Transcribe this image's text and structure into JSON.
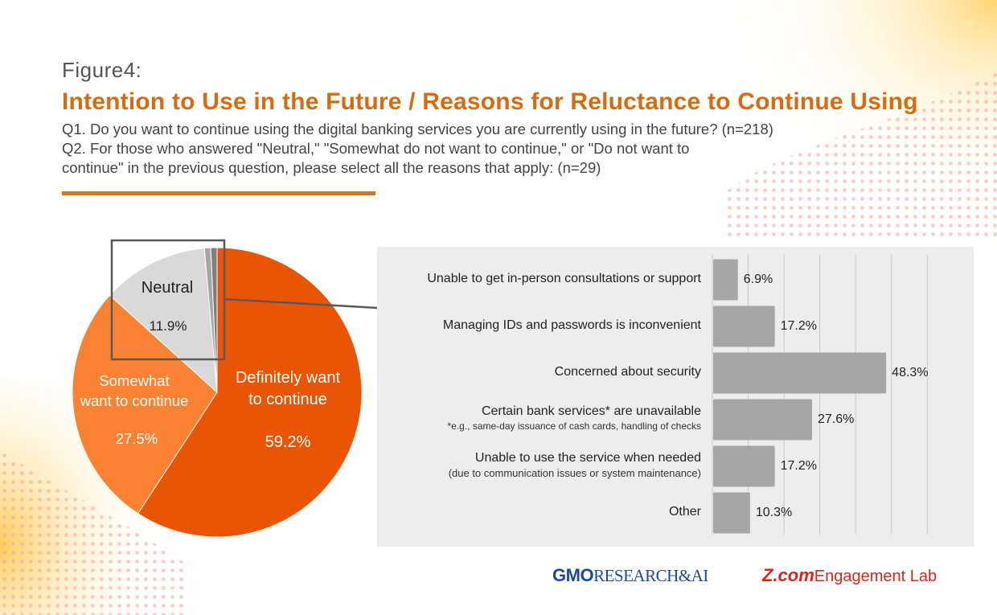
{
  "figure_label": "Figure4:",
  "title": "Intention to Use in the Future / Reasons for Reluctance to Continue Using",
  "questions": {
    "q1": "Q1. Do you want to continue using the digital banking services you are currently using in the future? (n=218)",
    "q2_line1": "Q2. For those who answered \"Neutral,\" \"Somewhat do not want to continue,\" or \"Do not want to",
    "q2_line2": "continue\" in the previous question, please select all the reasons that apply: (n=29)"
  },
  "colors": {
    "accent": "#d96a0e",
    "definitely": "#e95504",
    "somewhat": "#fa8232",
    "neutral": "#d9d9d9",
    "small_a": "#a6a6a6",
    "small_b": "#7f7f7f",
    "bar": "#a6a6a6",
    "panel": "#ededed"
  },
  "chart_data": [
    {
      "type": "pie",
      "question": "Q1",
      "slices": [
        {
          "label": "Definitely want to continue",
          "label_lines": [
            "Definitely want",
            "to continue"
          ],
          "value": 59.2,
          "value_label": "59.2%"
        },
        {
          "label": "Somewhat want to continue",
          "label_lines": [
            "Somewhat",
            "want to continue"
          ],
          "value": 27.5,
          "value_label": "27.5%"
        },
        {
          "label": "Neutral",
          "label_lines": [
            "Neutral"
          ],
          "value": 11.9,
          "value_label": "11.9%"
        },
        {
          "label": "",
          "label_lines": [],
          "value": 0.7,
          "value_label": ""
        },
        {
          "label": "",
          "label_lines": [],
          "value": 0.7,
          "value_label": ""
        }
      ]
    },
    {
      "type": "bar",
      "orientation": "horizontal",
      "question": "Q2",
      "categories": [
        "Unable to get in-person consultations or support",
        "Managing IDs and passwords is inconvenient",
        "Concerned about security",
        "Certain bank services* are unavailable",
        "Unable to use the service when needed",
        "Other"
      ],
      "notes": [
        "",
        "",
        "",
        "*e.g., same-day issuance of cash cards, handling of checks",
        "(due to communication issues or system maintenance)",
        ""
      ],
      "values": [
        6.9,
        17.2,
        48.3,
        27.6,
        17.2,
        10.3
      ],
      "value_labels": [
        "6.9%",
        "17.2%",
        "48.3%",
        "27.6%",
        "17.2%",
        "10.3%"
      ],
      "xlim": [
        0,
        60
      ],
      "grid": true
    }
  ],
  "logos": {
    "gmo_mark": "GMO",
    "gmo_text": "RESEARCH&AI",
    "zcom_mark": "Z.com",
    "zcom_text": "Engagement Lab"
  }
}
